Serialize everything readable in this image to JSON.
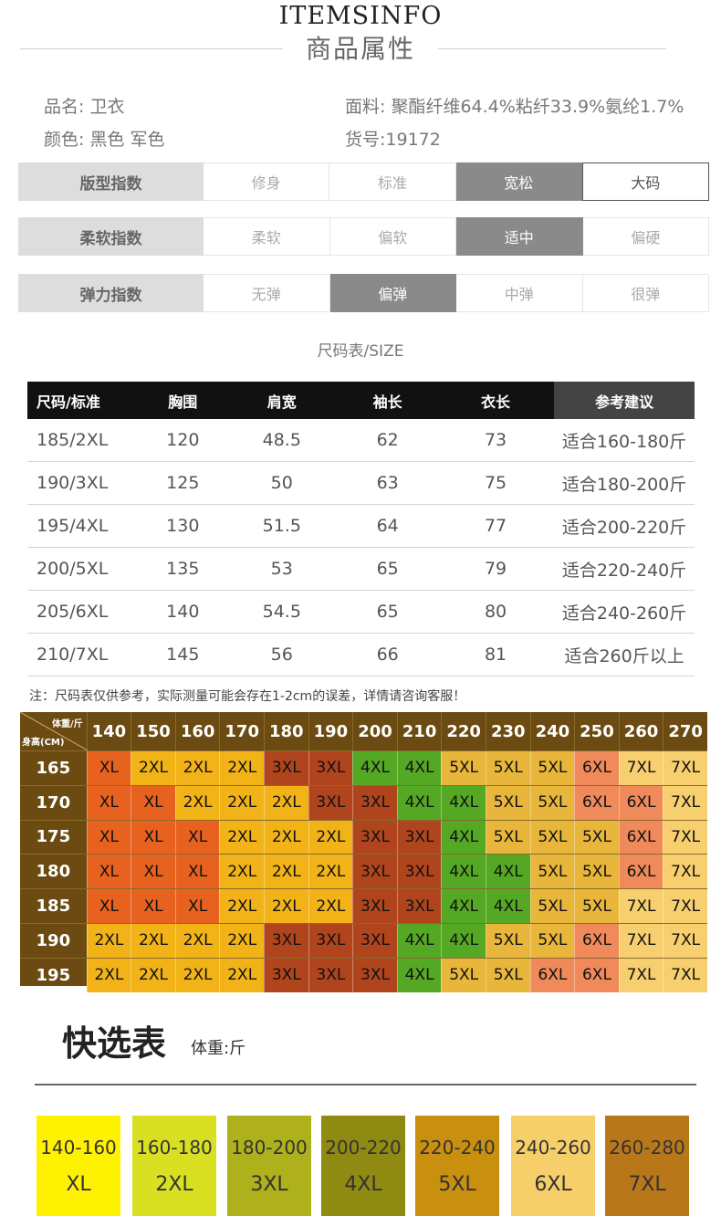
{
  "header": {
    "brand": "ITEMSINFO",
    "title": "商品属性"
  },
  "attributes": {
    "name": "品名: 卫衣",
    "color": "颜色: 黑色 军色",
    "fabric": "面料: 聚酯纤维64.4%粘纤33.9%氨纶1.7%",
    "item_no": "货号:19172"
  },
  "indices": [
    {
      "label": "版型指数",
      "options": [
        "修身",
        "标准",
        "宽松",
        "大码"
      ],
      "active": 2,
      "outlined": 3
    },
    {
      "label": "柔软指数",
      "options": [
        "柔软",
        "偏软",
        "适中",
        "偏硬"
      ],
      "active": 2,
      "outlined": -1
    },
    {
      "label": "弹力指数",
      "options": [
        "无弹",
        "偏弹",
        "中弹",
        "很弹"
      ],
      "active": 1,
      "outlined": -1
    }
  ],
  "size_caption": "尺码表/SIZE",
  "size_table": {
    "headers": [
      "尺码/标准",
      "胸围",
      "肩宽",
      "袖长",
      "衣长",
      "参考建议"
    ],
    "rows": [
      [
        "185/2XL",
        "120",
        "48.5",
        "62",
        "73",
        "适合160-180斤"
      ],
      [
        "190/3XL",
        "125",
        "50",
        "63",
        "75",
        "适合180-200斤"
      ],
      [
        "195/4XL",
        "130",
        "51.5",
        "64",
        "77",
        "适合200-220斤"
      ],
      [
        "200/5XL",
        "135",
        "53",
        "65",
        "79",
        "适合220-240斤"
      ],
      [
        "205/6XL",
        "140",
        "54.5",
        "65",
        "80",
        "适合240-260斤"
      ],
      [
        "210/7XL",
        "145",
        "56",
        "66",
        "81",
        "适合260斤以上"
      ]
    ]
  },
  "note": "注：尺码表仅供参考，实际测量可能会存在1-2cm的误差，详情请咨询客服！",
  "grid": {
    "corner_weight": "体重/斤",
    "corner_height": "身高(CM)",
    "weights": [
      "140",
      "150",
      "160",
      "170",
      "180",
      "190",
      "200",
      "210",
      "220",
      "230",
      "240",
      "250",
      "260",
      "270"
    ],
    "colors": {
      "XL": "#e8621f",
      "2XL": "#f2b318",
      "3XL": "#b0451d",
      "4XL": "#55a823",
      "5XL": "#e8b63a",
      "6XL": "#f08a5a",
      "7XL": "#f8cf6e"
    },
    "rows": [
      {
        "height": "165",
        "cells": [
          "XL",
          "2XL",
          "2XL",
          "2XL",
          "3XL",
          "3XL",
          "4XL",
          "4XL",
          "5XL",
          "5XL",
          "5XL",
          "6XL",
          "7XL",
          "7XL"
        ]
      },
      {
        "height": "170",
        "cells": [
          "XL",
          "XL",
          "2XL",
          "2XL",
          "2XL",
          "3XL",
          "3XL",
          "4XL",
          "4XL",
          "5XL",
          "5XL",
          "6XL",
          "6XL",
          "7XL"
        ]
      },
      {
        "height": "175",
        "cells": [
          "XL",
          "XL",
          "XL",
          "2XL",
          "2XL",
          "2XL",
          "3XL",
          "3XL",
          "4XL",
          "5XL",
          "5XL",
          "5XL",
          "6XL",
          "7XL"
        ]
      },
      {
        "height": "180",
        "cells": [
          "XL",
          "XL",
          "XL",
          "2XL",
          "2XL",
          "2XL",
          "3XL",
          "3XL",
          "4XL",
          "4XL",
          "5XL",
          "5XL",
          "6XL",
          "7XL"
        ]
      },
      {
        "height": "185",
        "cells": [
          "XL",
          "XL",
          "XL",
          "2XL",
          "2XL",
          "2XL",
          "3XL",
          "3XL",
          "4XL",
          "4XL",
          "5XL",
          "5XL",
          "7XL",
          "7XL"
        ]
      },
      {
        "height": "190",
        "cells": [
          "2XL",
          "2XL",
          "2XL",
          "2XL",
          "3XL",
          "3XL",
          "3XL",
          "4XL",
          "4XL",
          "5XL",
          "5XL",
          "6XL",
          "7XL",
          "7XL"
        ]
      },
      {
        "height": "195",
        "cells": [
          "2XL",
          "2XL",
          "2XL",
          "2XL",
          "3XL",
          "3XL",
          "3XL",
          "4XL",
          "5XL",
          "5XL",
          "6XL",
          "6XL",
          "7XL",
          "7XL"
        ]
      }
    ]
  },
  "quick_select": {
    "title": "快选表",
    "unit": "体重:斤",
    "items": [
      {
        "range": "140-160",
        "size": "XL",
        "color": "#fff200"
      },
      {
        "range": "160-180",
        "size": "2XL",
        "color": "#d9e021"
      },
      {
        "range": "180-200",
        "size": "3XL",
        "color": "#aeb01c"
      },
      {
        "range": "200-220",
        "size": "4XL",
        "color": "#8f8a12"
      },
      {
        "range": "220-240",
        "size": "5XL",
        "color": "#c98f0e"
      },
      {
        "range": "240-260",
        "size": "6XL",
        "color": "#f6cf6b"
      },
      {
        "range": "260-280",
        "size": "7XL",
        "color": "#b8781a"
      }
    ]
  }
}
